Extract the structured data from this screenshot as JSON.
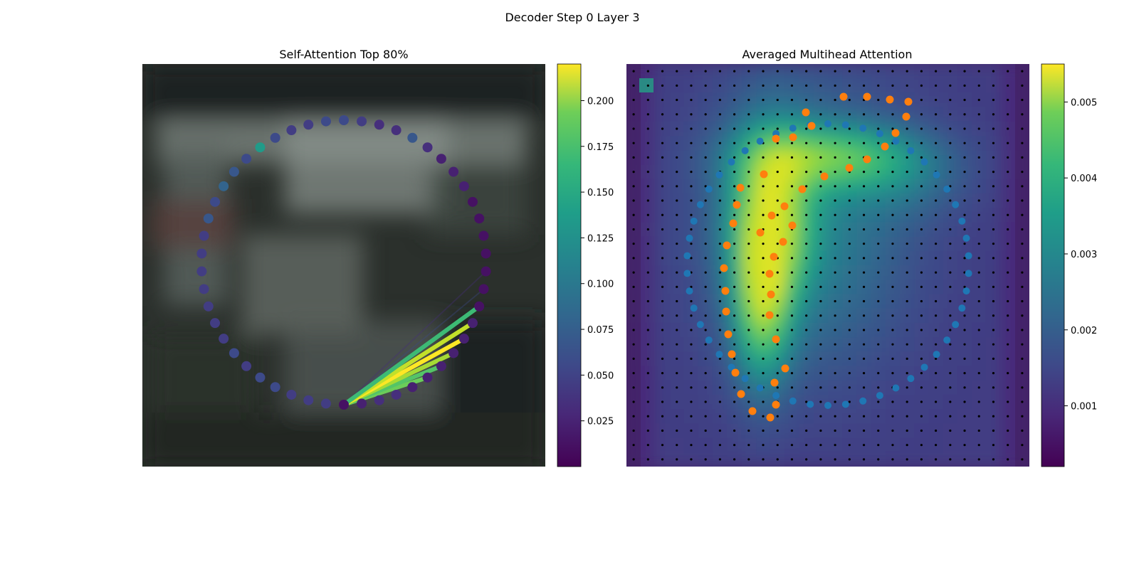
{
  "suptitle": "Decoder Step 0 Layer 3",
  "chart_data": [
    {
      "type": "scatter",
      "title": "Self-Attention Top 80%",
      "description_of_points": "ring of 50 query points colored by attention weight; lines from query point 0 to top-attended points",
      "colormap": "viridis",
      "colorbar": {
        "min": 0.0,
        "max": 0.22,
        "ticks": [
          "0.025",
          "0.050",
          "0.075",
          "0.100",
          "0.125",
          "0.150",
          "0.175",
          "0.200"
        ]
      },
      "point_weights": [
        0.01,
        0.02,
        0.03,
        0.03,
        0.02,
        0.02,
        0.02,
        0.02,
        0.02,
        0.02,
        0.01,
        0.01,
        0.01,
        0.01,
        0.01,
        0.01,
        0.01,
        0.02,
        0.02,
        0.02,
        0.03,
        0.06,
        0.03,
        0.03,
        0.04,
        0.05,
        0.05,
        0.04,
        0.04,
        0.05,
        0.12,
        0.05,
        0.06,
        0.07,
        0.05,
        0.06,
        0.04,
        0.04,
        0.04,
        0.04,
        0.04,
        0.04,
        0.04,
        0.05,
        0.04,
        0.05,
        0.05,
        0.04,
        0.04,
        0.04
      ],
      "attention_lines": [
        {
          "to": 5,
          "weight": 0.17
        },
        {
          "to": 6,
          "weight": 0.16
        },
        {
          "to": 7,
          "weight": 0.19
        },
        {
          "to": 8,
          "weight": 0.22
        },
        {
          "to": 9,
          "weight": 0.2
        },
        {
          "to": 10,
          "weight": 0.15
        }
      ],
      "faint_lines": [
        {
          "to": 11,
          "weight": 0.05
        },
        {
          "to": 12,
          "weight": 0.03
        }
      ]
    },
    {
      "type": "heatmap",
      "title": "Averaged Multihead Attention",
      "colormap": "viridis",
      "colorbar": {
        "min": 0.0002,
        "max": 0.0055,
        "ticks": [
          "0.001",
          "0.002",
          "0.003",
          "0.004",
          "0.005"
        ]
      },
      "grid": {
        "rows": 28,
        "cols": 28
      },
      "blue_series": "reference ring (50 points)",
      "orange_series": "sampled locations (50 points)"
    }
  ],
  "colors": {
    "blue_marker": "#1f77b4",
    "orange_marker": "#ff7f0e",
    "grid_dot": "#000000"
  }
}
